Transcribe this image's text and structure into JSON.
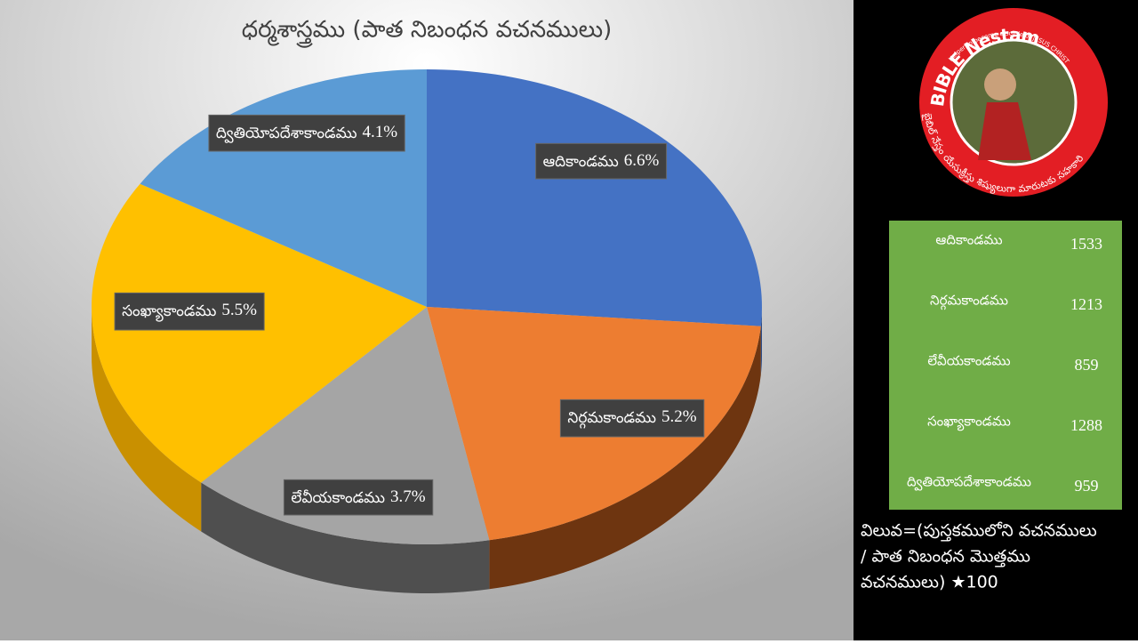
{
  "chart_data": {
    "type": "pie3d",
    "title": "ధర్మశాస్త్రము (పాత నిబంధన వచనములు)",
    "categories": [
      "ఆదికాండము",
      "నిర్గమకాండము",
      "లేవీయకాండము",
      "సంఖ్యాకాండము",
      "ద్వితియోపదేశాకాండము"
    ],
    "values": [
      6.6,
      5.2,
      3.7,
      5.5,
      4.1
    ],
    "value_labels": [
      "6.6%",
      "5.2%",
      "3.7%",
      "5.5%",
      "4.1%"
    ],
    "colors": [
      "#4472c4",
      "#ed7d31",
      "#a5a5a5",
      "#ffc000",
      "#5b9bd5"
    ],
    "side_colors": [
      "#2a4a85",
      "#6e3510",
      "#4f4f4f",
      "#c99000",
      "#3a6d9c"
    ]
  },
  "logo": {
    "title": "BIBLE Nestam",
    "tagline": "Helper to become disciple of JESUS CHRIST",
    "telugu_tagline": "బైబిల్ నేస్తం యేసుక్రీస్తు శిష్యులుగా మారుటకు సహకారి"
  },
  "table": {
    "rows": [
      [
        "ఆదికాండము",
        1533
      ],
      [
        "నిర్గమకాండము",
        1213
      ],
      [
        "లేవీయకాండము",
        859
      ],
      [
        "సంఖ్యాకాండము",
        1288
      ],
      [
        "ద్వితియోపదేశాకాండము",
        959
      ]
    ]
  },
  "note": {
    "lines": [
      "విలువ=(పుస్తకములోని వచనములు",
      "/ పాత నిబంధన మొత్తము",
      "వచనములు) ★100"
    ]
  }
}
